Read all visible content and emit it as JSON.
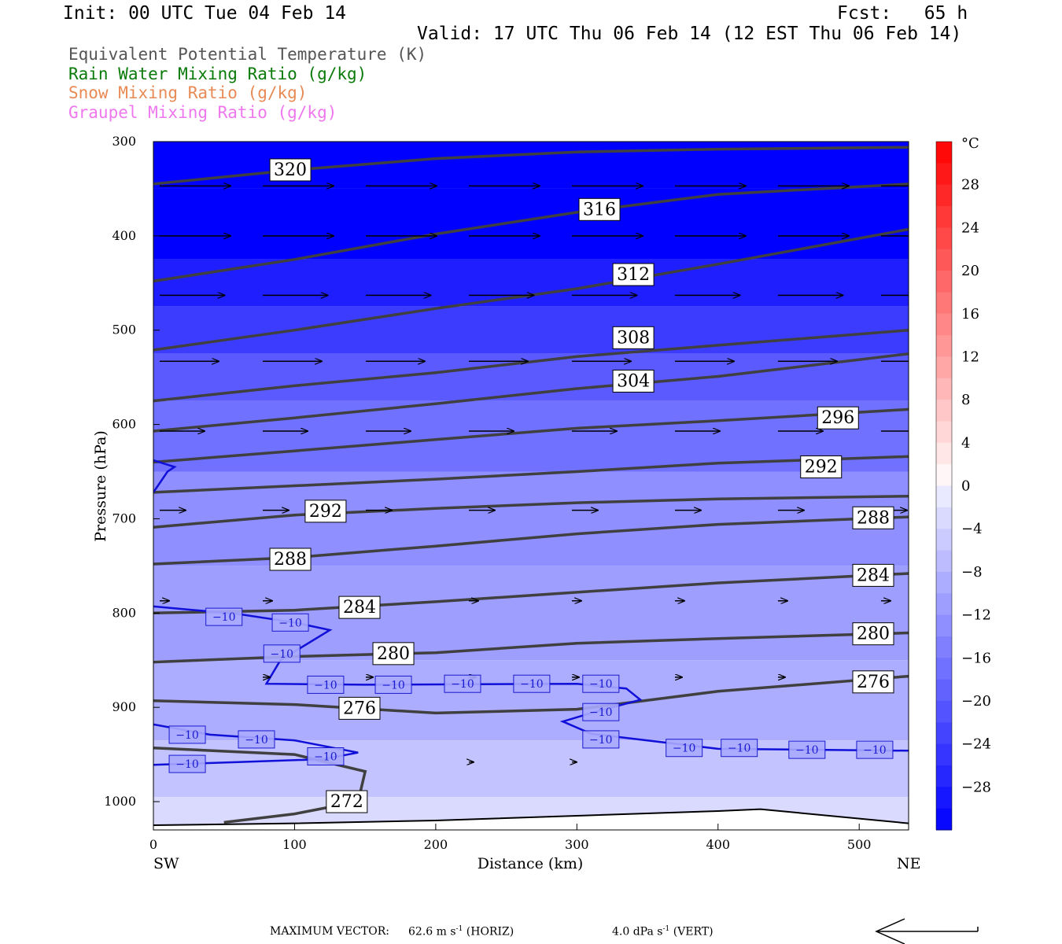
{
  "header": {
    "init": "Init: 00 UTC Tue 04 Feb 14",
    "fcst": "Fcst:   65 h",
    "valid": "Valid: 17 UTC Thu 06 Feb 14 (12 EST Thu 06 Feb 14)"
  },
  "legend": [
    {
      "text": "Equivalent Potential Temperature (K)",
      "color": "#555555"
    },
    {
      "text": "Rain Water Mixing Ratio (g/kg)",
      "color": "#0a7a0a"
    },
    {
      "text": "Snow Mixing Ratio (g/kg)",
      "color": "#e88a55"
    },
    {
      "text": "Graupel Mixing Ratio (g/kg)",
      "color": "#ee77ee"
    }
  ],
  "footer": {
    "max_vector_label": "MAXIMUM VECTOR:",
    "horiz_value": "62.6 m s",
    "horiz_exp": "-1",
    "horiz_tag": "(HORIZ)",
    "vert_value": "4.0 dPa s",
    "vert_exp": "-1",
    "vert_tag": "(VERT)"
  },
  "chart_data": {
    "type": "cross-section",
    "xlabel": "Distance (km)",
    "ylabel": "Pressure (hPa)",
    "x_ticks": [
      0,
      100,
      200,
      300,
      400,
      500
    ],
    "y_ticks": [
      300,
      400,
      500,
      600,
      700,
      800,
      900,
      1000
    ],
    "xlim": [
      0,
      535
    ],
    "ylim": [
      300,
      1030
    ],
    "x_left_label": "SW",
    "x_right_label": "NE",
    "colorbar": {
      "unit": "°C",
      "labels": [
        28,
        24,
        20,
        16,
        12,
        8,
        4,
        0,
        -4,
        -8,
        -12,
        -16,
        -20,
        -24,
        -28
      ],
      "levels": [
        32,
        30,
        28,
        26,
        24,
        22,
        20,
        18,
        16,
        14,
        12,
        10,
        8,
        6,
        4,
        2,
        0,
        -2,
        -4,
        -6,
        -8,
        -10,
        -12,
        -14,
        -16,
        -18,
        -20,
        -22,
        -24,
        -26,
        -28,
        -30,
        -32
      ],
      "colors_warm": "#ff0000",
      "colors_cold": "#0000ff"
    },
    "temperature_bands": [
      {
        "p": 300,
        "t": -34
      },
      {
        "p": 400,
        "t": -32
      },
      {
        "p": 450,
        "t": -28
      },
      {
        "p": 500,
        "t": -24
      },
      {
        "p": 550,
        "t": -20
      },
      {
        "p": 600,
        "t": -17
      },
      {
        "p": 700,
        "t": -13
      },
      {
        "p": 800,
        "t": -11
      },
      {
        "p": 900,
        "t": -9
      },
      {
        "p": 970,
        "t": -6
      },
      {
        "p": 1020,
        "t": -3
      }
    ],
    "theta_e_contours": [
      {
        "value": 320,
        "points": [
          [
            0,
            345
          ],
          [
            100,
            330
          ],
          [
            200,
            318
          ],
          [
            300,
            311
          ],
          [
            400,
            308
          ],
          [
            535,
            306
          ]
        ],
        "label_at": [
          97,
          330
        ]
      },
      {
        "value": 316,
        "points": [
          [
            0,
            448
          ],
          [
            100,
            425
          ],
          [
            200,
            398
          ],
          [
            300,
            375
          ],
          [
            400,
            356
          ],
          [
            535,
            345
          ]
        ],
        "label_at": [
          316,
          372
        ]
      },
      {
        "value": 312,
        "points": [
          [
            0,
            521
          ],
          [
            100,
            500
          ],
          [
            200,
            477
          ],
          [
            300,
            456
          ],
          [
            400,
            430
          ],
          [
            535,
            393
          ]
        ],
        "label_at": [
          340,
          441
        ]
      },
      {
        "value": 308,
        "points": [
          [
            0,
            575
          ],
          [
            100,
            559
          ],
          [
            200,
            545
          ],
          [
            300,
            528
          ],
          [
            400,
            516
          ],
          [
            535,
            500
          ]
        ],
        "label_at": [
          340,
          508
        ]
      },
      {
        "value": 304,
        "points": [
          [
            0,
            607
          ],
          [
            100,
            593
          ],
          [
            200,
            578
          ],
          [
            300,
            562
          ],
          [
            400,
            549
          ],
          [
            535,
            525
          ]
        ],
        "label_at": [
          340,
          554
        ]
      },
      {
        "value": 296,
        "points": [
          [
            0,
            640
          ],
          [
            100,
            628
          ],
          [
            200,
            616
          ],
          [
            300,
            604
          ],
          [
            400,
            596
          ],
          [
            535,
            584
          ]
        ],
        "label_at": [
          485,
          593
        ]
      },
      {
        "value": 292,
        "points": [
          [
            0,
            672
          ],
          [
            100,
            665
          ],
          [
            200,
            658
          ],
          [
            300,
            650
          ],
          [
            400,
            641
          ],
          [
            535,
            634
          ]
        ],
        "label_at": [
          473,
          645
        ]
      },
      {
        "value": 292,
        "points": [
          [
            0,
            709
          ],
          [
            100,
            696
          ],
          [
            200,
            689
          ],
          [
            300,
            683
          ],
          [
            400,
            679
          ],
          [
            535,
            676
          ]
        ],
        "label_at": [
          122,
          692
        ]
      },
      {
        "value": 288,
        "points": [
          [
            0,
            748
          ],
          [
            100,
            741
          ],
          [
            200,
            729
          ],
          [
            300,
            716
          ],
          [
            400,
            706
          ],
          [
            535,
            698
          ]
        ],
        "label_at": [
          97,
          743
        ]
      },
      {
        "value": 284,
        "points": [
          [
            0,
            800
          ],
          [
            100,
            797
          ],
          [
            200,
            788
          ],
          [
            300,
            778
          ],
          [
            400,
            768
          ],
          [
            535,
            758
          ]
        ],
        "label_at": [
          146,
          794
        ]
      },
      {
        "value": 280,
        "points": [
          [
            0,
            852
          ],
          [
            100,
            846
          ],
          [
            200,
            842
          ],
          [
            300,
            832
          ],
          [
            400,
            827
          ],
          [
            535,
            821
          ]
        ],
        "label_at": [
          170,
          843
        ]
      },
      {
        "value": 276,
        "points": [
          [
            0,
            893
          ],
          [
            100,
            897
          ],
          [
            200,
            906
          ],
          [
            300,
            902
          ],
          [
            400,
            883
          ],
          [
            535,
            867
          ]
        ],
        "label_at": [
          146,
          901
        ]
      },
      {
        "value": 272,
        "points": [
          [
            50,
            1022
          ],
          [
            100,
            1013
          ],
          [
            145,
            1000
          ],
          [
            150,
            968
          ],
          [
            100,
            950
          ],
          [
            0,
            943
          ]
        ],
        "label_at": [
          137,
          1000
        ]
      }
    ],
    "theta_e_right_labels": [
      {
        "value": 288,
        "p": 699
      },
      {
        "value": 284,
        "p": 760
      },
      {
        "value": 280,
        "p": 822
      },
      {
        "value": 276,
        "p": 873
      }
    ],
    "theta_e_extra_right_labels": [
      {
        "value": 296,
        "x": 485
      },
      {
        "value": 292,
        "x": 473
      }
    ],
    "minus10_isotherm": [
      {
        "points": [
          [
            0,
            793
          ],
          [
            60,
            801
          ],
          [
            100,
            810
          ],
          [
            125,
            818
          ],
          [
            90,
            850
          ],
          [
            80,
            875
          ],
          [
            150,
            876
          ],
          [
            300,
            875
          ],
          [
            335,
            880
          ],
          [
            345,
            892
          ],
          [
            310,
            906
          ],
          [
            290,
            915
          ],
          [
            310,
            928
          ],
          [
            400,
            944
          ],
          [
            535,
            946
          ]
        ]
      },
      {
        "points": [
          [
            0,
            918
          ],
          [
            40,
            929
          ],
          [
            100,
            935
          ],
          [
            145,
            948
          ],
          [
            120,
            955
          ],
          [
            60,
            958
          ],
          [
            0,
            961
          ]
        ]
      },
      {
        "points": [
          [
            0,
            672
          ],
          [
            10,
            650
          ],
          [
            15,
            645
          ],
          [
            0,
            638
          ]
        ]
      }
    ],
    "minus10_labels": [
      {
        "x": 50,
        "p": 804
      },
      {
        "x": 97,
        "p": 810
      },
      {
        "x": 91,
        "p": 843
      },
      {
        "x": 122,
        "p": 876
      },
      {
        "x": 170,
        "p": 876
      },
      {
        "x": 219,
        "p": 875
      },
      {
        "x": 268,
        "p": 875
      },
      {
        "x": 317,
        "p": 875
      },
      {
        "x": 317,
        "p": 905
      },
      {
        "x": 317,
        "p": 934
      },
      {
        "x": 376,
        "p": 943
      },
      {
        "x": 415,
        "p": 943
      },
      {
        "x": 463,
        "p": 945
      },
      {
        "x": 511,
        "p": 945
      },
      {
        "x": 24,
        "p": 929
      },
      {
        "x": 73,
        "p": 934
      },
      {
        "x": 122,
        "p": 952
      },
      {
        "x": 24,
        "p": 960
      }
    ],
    "minus10_text": "−10",
    "wind_rows": [
      {
        "p": 347,
        "xs": [
          0,
          73,
          146,
          219,
          292,
          365,
          438,
          511
        ],
        "len": 60
      },
      {
        "p": 400,
        "xs": [
          0,
          73,
          146,
          219,
          292,
          365,
          438,
          511
        ],
        "len": 60
      },
      {
        "p": 463,
        "xs": [
          0,
          73,
          146,
          219,
          292,
          365,
          438,
          511
        ],
        "len": 55
      },
      {
        "p": 533,
        "xs": [
          0,
          73,
          146,
          219,
          292,
          365,
          438,
          511
        ],
        "len": 50
      },
      {
        "p": 607,
        "xs": [
          0,
          73,
          146,
          219,
          292,
          365,
          438,
          511
        ],
        "len": 38
      },
      {
        "p": 691,
        "xs": [
          0,
          73,
          146,
          219,
          292,
          365,
          438,
          511
        ],
        "len": 22
      },
      {
        "p": 787,
        "xs": [
          0,
          73,
          146,
          219,
          292,
          365,
          438,
          511
        ],
        "len": 8
      },
      {
        "p": 868,
        "xs": [
          73,
          146,
          219,
          292,
          365,
          438
        ],
        "len": 6
      },
      {
        "p": 958,
        "xs": [
          219,
          292
        ],
        "len": 4
      }
    ],
    "surface_points": [
      [
        0,
        1025
      ],
      [
        100,
        1023
      ],
      [
        200,
        1020
      ],
      [
        300,
        1015
      ],
      [
        400,
        1010
      ],
      [
        430,
        1008
      ],
      [
        535,
        1023
      ]
    ]
  }
}
